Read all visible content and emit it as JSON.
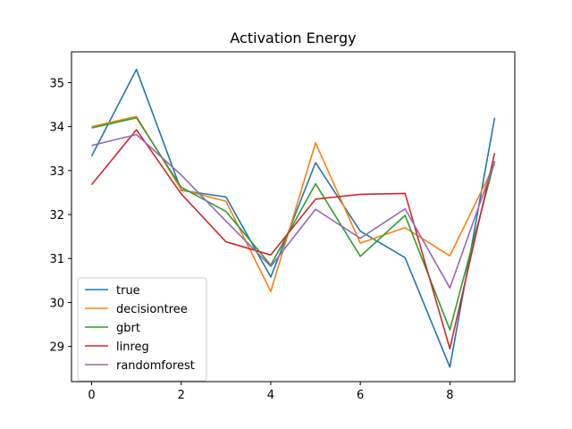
{
  "chart_data": {
    "type": "line",
    "title": "Activation Energy",
    "xlabel": "",
    "ylabel": "",
    "x": [
      0,
      1,
      2,
      3,
      4,
      5,
      6,
      7,
      8,
      9
    ],
    "xlim": [
      -0.45,
      9.45
    ],
    "ylim": [
      28.2,
      35.7
    ],
    "xticks": [
      0,
      2,
      4,
      6,
      8
    ],
    "yticks": [
      29,
      30,
      31,
      32,
      33,
      34,
      35
    ],
    "grid": false,
    "legend_position": "lower-left",
    "series": [
      {
        "name": "true",
        "color": "#1f77b4",
        "values": [
          33.33,
          35.3,
          32.55,
          32.4,
          30.58,
          33.18,
          31.62,
          31.02,
          28.53,
          34.2
        ]
      },
      {
        "name": "decisiontree",
        "color": "#ff7f0e",
        "values": [
          34.0,
          34.23,
          32.57,
          32.3,
          30.25,
          33.63,
          31.35,
          31.7,
          31.06,
          33.15
        ]
      },
      {
        "name": "gbrt",
        "color": "#2ca02c",
        "values": [
          33.97,
          34.2,
          32.62,
          32.07,
          30.85,
          32.7,
          31.05,
          31.98,
          29.38,
          33.22
        ]
      },
      {
        "name": "linreg",
        "color": "#d62728",
        "values": [
          32.68,
          33.93,
          32.47,
          31.38,
          31.08,
          32.35,
          32.46,
          32.48,
          28.95,
          33.4
        ]
      },
      {
        "name": "randomforest",
        "color": "#9467bd",
        "values": [
          33.57,
          33.82,
          32.9,
          31.85,
          30.82,
          32.12,
          31.46,
          32.13,
          30.33,
          33.2
        ]
      }
    ]
  }
}
